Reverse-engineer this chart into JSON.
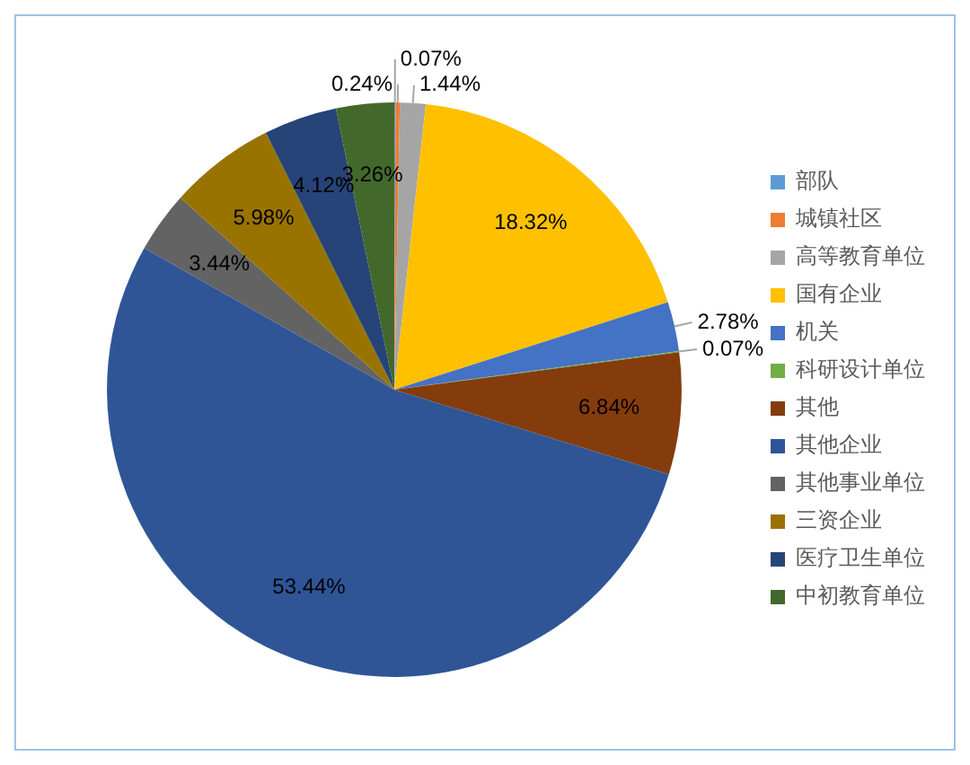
{
  "chart_data": {
    "type": "pie",
    "categories": [
      "部队",
      "城镇社区",
      "高等教育单位",
      "国有企业",
      "机关",
      "科研设计单位",
      "其他",
      "其他企业",
      "其他事业单位",
      "三资企业",
      "医疗卫生单位",
      "中初教育单位"
    ],
    "values": [
      0.07,
      0.24,
      1.44,
      18.32,
      2.78,
      0.07,
      6.84,
      53.44,
      3.44,
      5.98,
      4.12,
      3.26
    ],
    "value_labels": [
      "0.07%",
      "0.24%",
      "1.44%",
      "18.32%",
      "2.78%",
      "0.07%",
      "6.84%",
      "53.44%",
      "3.44%",
      "5.98%",
      "4.12%",
      "3.26%"
    ],
    "colors": [
      "#5b9bd5",
      "#ed7d31",
      "#a5a5a5",
      "#ffc000",
      "#4472c4",
      "#70ad47",
      "#843c0c",
      "#2f5597",
      "#636363",
      "#997300",
      "#264478",
      "#43682b"
    ],
    "legend": "right"
  }
}
